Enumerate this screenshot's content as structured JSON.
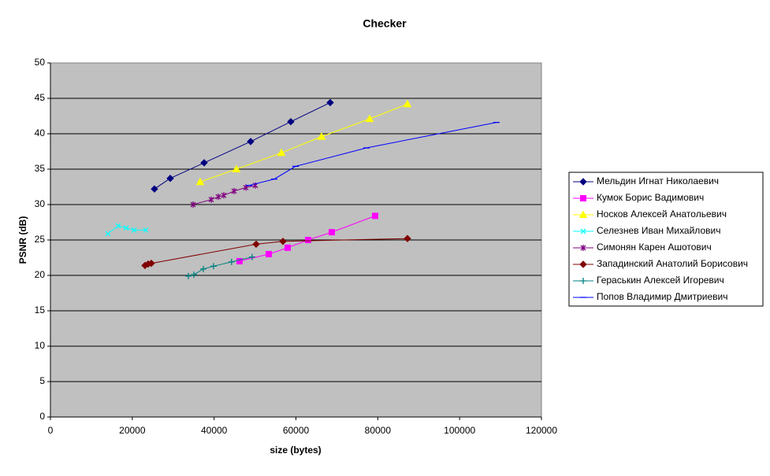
{
  "chart_data": {
    "type": "scatter",
    "title": "Checker",
    "x_label": "size (bytes)",
    "y_label": "PSNR (dB)",
    "xlim": [
      0,
      120000
    ],
    "xticks": [
      0,
      20000,
      40000,
      60000,
      80000,
      100000,
      120000
    ],
    "ylim": [
      0,
      50
    ],
    "yticks": [
      0,
      5,
      10,
      15,
      20,
      25,
      30,
      35,
      40,
      45,
      50
    ],
    "grid": true,
    "legend": "right",
    "series": [
      {
        "name": "Мельдин Игнат Николаевич",
        "color": "#000080",
        "marker": "diamond",
        "x": [
          25420,
          29280,
          37560,
          48920,
          58740,
          68370
        ],
        "values": [
          32.2,
          33.7,
          35.9,
          38.9,
          41.7,
          44.4
        ]
      },
      {
        "name": "Кумок Борис Вадимович",
        "color": "#FF00FF",
        "marker": "square",
        "x": [
          46220,
          53350,
          57970,
          62980,
          68760,
          79350
        ],
        "values": [
          22.0,
          23.0,
          23.9,
          25.0,
          26.1,
          28.4
        ]
      },
      {
        "name": "Носков Алексей Анатольевич",
        "color": "#FFFF00",
        "marker": "triangle",
        "x": [
          36590,
          45450,
          56430,
          66250,
          78000,
          87250
        ],
        "values": [
          33.2,
          35.0,
          37.3,
          39.6,
          42.1,
          44.2
        ]
      },
      {
        "name": "Селезнев Иван Михайлович",
        "color": "#00FFFF",
        "marker": "x",
        "x": [
          14060,
          16560,
          18490,
          20420,
          23300
        ],
        "values": [
          25.9,
          27.0,
          26.7,
          26.4,
          26.4
        ]
      },
      {
        "name": "Симонян Карен Ашотович",
        "color": "#800080",
        "marker": "star",
        "x": [
          34860,
          39290,
          41020,
          42370,
          44880,
          47760,
          50080
        ],
        "values": [
          30.0,
          30.7,
          31.1,
          31.3,
          31.9,
          32.4,
          32.7
        ]
      },
      {
        "name": "Западинский Анатолий Борисович",
        "color": "#800000",
        "marker": "diamond",
        "x": [
          23110,
          23880,
          24650,
          50270,
          56820,
          87250
        ],
        "values": [
          21.4,
          21.6,
          21.7,
          24.4,
          24.8,
          25.2
        ]
      },
      {
        "name": "Гераськин Алексей Игоревич",
        "color": "#008080",
        "marker": "plus",
        "x": [
          33700,
          35050,
          37360,
          39870,
          44260,
          49300
        ],
        "values": [
          19.9,
          20.1,
          20.9,
          21.3,
          21.9,
          22.6
        ]
      },
      {
        "name": "Попов Владимир Дмитриевич",
        "color": "#0000FF",
        "marker": "dash",
        "x": [
          48540,
          54700,
          59900,
          77230,
          109000
        ],
        "values": [
          32.7,
          33.6,
          35.4,
          38.0,
          41.6
        ]
      }
    ]
  }
}
